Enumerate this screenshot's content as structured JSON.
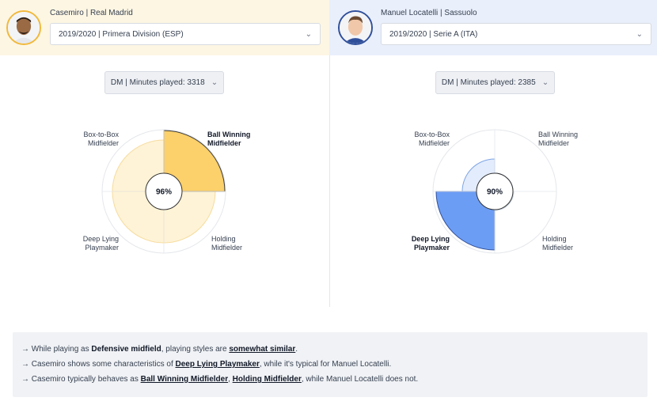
{
  "left": {
    "player": "Casemiro | Real Madrid",
    "season": "2019/2020 | Primera Division (ESP)",
    "position_filter": "DM | Minutes played: 3318",
    "center_value": "96%",
    "accent": "#fcd06a",
    "labels": {
      "tl": [
        "Box-to-Box",
        "Midfielder"
      ],
      "tr": [
        "Ball Winning",
        "Midfielder"
      ],
      "bl": [
        "Deep Lying",
        "Playmaker"
      ],
      "br": [
        "Holding",
        "Midfielder"
      ]
    }
  },
  "right": {
    "player": "Manuel Locatelli | Sassuolo",
    "season": "2019/2020 | Serie A (ITA)",
    "position_filter": "DM | Minutes played: 2385",
    "center_value": "90%",
    "accent": "#6c9df5",
    "labels": {
      "tl": [
        "Box-to-Box",
        "Midfielder"
      ],
      "tr": [
        "Ball Winning",
        "Midfielder"
      ],
      "bl": [
        "Deep Lying",
        "Playmaker"
      ],
      "br": [
        "Holding",
        "Midfielder"
      ]
    }
  },
  "summary": {
    "arrow": "→",
    "line1": {
      "pre": "While playing as",
      "role": "Defensive midfield",
      "mid": ", playing styles are",
      "similarity": "somewhat similar",
      "end": "."
    },
    "line2": {
      "pre": "Casemiro shows some characteristics of",
      "style": "Deep Lying Playmaker",
      "end": ", while it's typical for Manuel Locatelli."
    },
    "line3": {
      "pre": "Casemiro typically behaves as",
      "style1": "Ball Winning Midfielder",
      "sep": ",",
      "style2": "Holding Midfielder",
      "end": ", while Manuel Locatelli does not."
    }
  }
}
